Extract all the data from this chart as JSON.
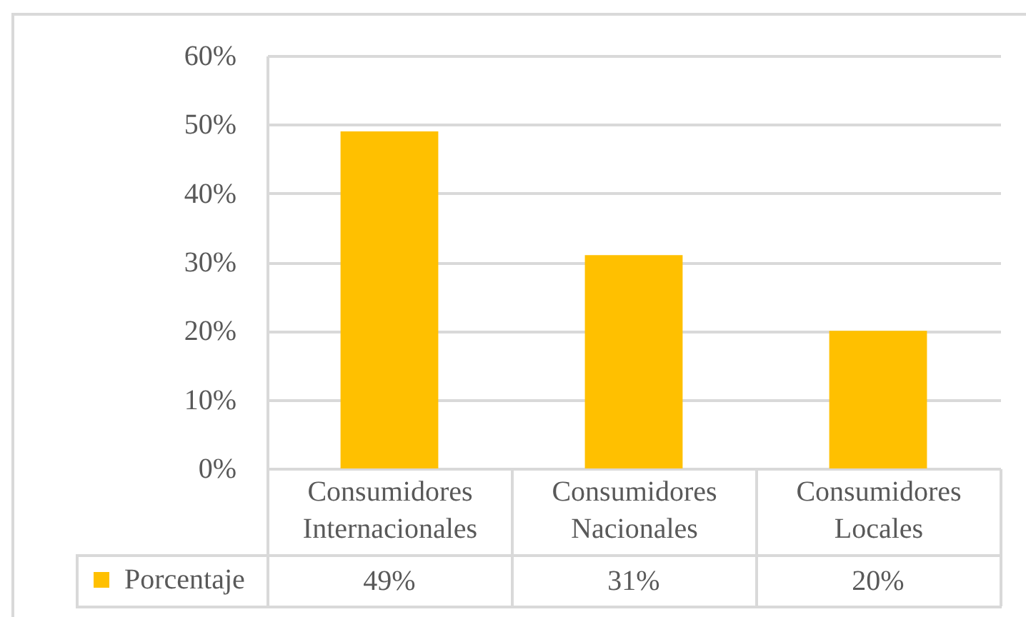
{
  "chart_data": {
    "type": "bar",
    "categories": [
      "Consumidores Internacionales",
      "Consumidores Nacionales",
      "Consumidores Locales"
    ],
    "series": [
      {
        "name": "Porcentaje",
        "color": "#ffc000",
        "values": [
          49,
          31,
          20
        ],
        "value_labels": [
          "49%",
          "31%",
          "20%"
        ]
      }
    ],
    "ylim": [
      0,
      60
    ],
    "yticks": [
      {
        "value": 0,
        "label": "0%"
      },
      {
        "value": 10,
        "label": "10%"
      },
      {
        "value": 20,
        "label": "20%"
      },
      {
        "value": 30,
        "label": "30%"
      },
      {
        "value": 40,
        "label": "40%"
      },
      {
        "value": 50,
        "label": "50%"
      },
      {
        "value": 60,
        "label": "60%"
      }
    ],
    "grid": "y",
    "legend": "bottom left"
  }
}
